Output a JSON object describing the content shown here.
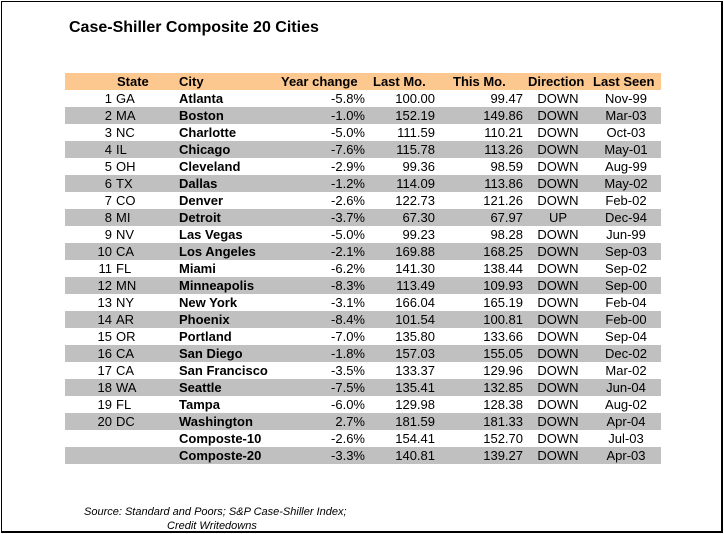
{
  "title": "Case-Shiller Composite 20 Cities",
  "columns": {
    "state": "State",
    "city": "City",
    "year_change": "Year change",
    "last_mo": "Last Mo.",
    "this_mo": "This Mo.",
    "direction": "Direction",
    "last_seen": "Last Seen"
  },
  "rows": [
    {
      "num": "1",
      "state": "GA",
      "city": "Atlanta",
      "year_change": "-5.8%",
      "last_mo": "100.00",
      "this_mo": "99.47",
      "direction": "DOWN",
      "last_seen": "Nov-99"
    },
    {
      "num": "2",
      "state": "MA",
      "city": "Boston",
      "year_change": "-1.0%",
      "last_mo": "152.19",
      "this_mo": "149.86",
      "direction": "DOWN",
      "last_seen": "Mar-03"
    },
    {
      "num": "3",
      "state": "NC",
      "city": "Charlotte",
      "year_change": "-5.0%",
      "last_mo": "111.59",
      "this_mo": "110.21",
      "direction": "DOWN",
      "last_seen": "Oct-03"
    },
    {
      "num": "4",
      "state": "IL",
      "city": "Chicago",
      "year_change": "-7.6%",
      "last_mo": "115.78",
      "this_mo": "113.26",
      "direction": "DOWN",
      "last_seen": "May-01"
    },
    {
      "num": "5",
      "state": "OH",
      "city": "Cleveland",
      "year_change": "-2.9%",
      "last_mo": "99.36",
      "this_mo": "98.59",
      "direction": "DOWN",
      "last_seen": "Aug-99"
    },
    {
      "num": "6",
      "state": "TX",
      "city": "Dallas",
      "year_change": "-1.2%",
      "last_mo": "114.09",
      "this_mo": "113.86",
      "direction": "DOWN",
      "last_seen": "May-02"
    },
    {
      "num": "7",
      "state": "CO",
      "city": "Denver",
      "year_change": "-2.6%",
      "last_mo": "122.73",
      "this_mo": "121.26",
      "direction": "DOWN",
      "last_seen": "Feb-02"
    },
    {
      "num": "8",
      "state": "MI",
      "city": "Detroit",
      "year_change": "-3.7%",
      "last_mo": "67.30",
      "this_mo": "67.97",
      "direction": "UP",
      "last_seen": "Dec-94"
    },
    {
      "num": "9",
      "state": "NV",
      "city": "Las Vegas",
      "year_change": "-5.0%",
      "last_mo": "99.23",
      "this_mo": "98.28",
      "direction": "DOWN",
      "last_seen": "Jun-99"
    },
    {
      "num": "10",
      "state": "CA",
      "city": "Los Angeles",
      "year_change": "-2.1%",
      "last_mo": "169.88",
      "this_mo": "168.25",
      "direction": "DOWN",
      "last_seen": "Sep-03"
    },
    {
      "num": "11",
      "state": "FL",
      "city": "Miami",
      "year_change": "-6.2%",
      "last_mo": "141.30",
      "this_mo": "138.44",
      "direction": "DOWN",
      "last_seen": "Sep-02"
    },
    {
      "num": "12",
      "state": "MN",
      "city": "Minneapolis",
      "year_change": "-8.3%",
      "last_mo": "113.49",
      "this_mo": "109.93",
      "direction": "DOWN",
      "last_seen": "Sep-00"
    },
    {
      "num": "13",
      "state": "NY",
      "city": "New York",
      "year_change": "-3.1%",
      "last_mo": "166.04",
      "this_mo": "165.19",
      "direction": "DOWN",
      "last_seen": "Feb-04"
    },
    {
      "num": "14",
      "state": "AR",
      "city": "Phoenix",
      "year_change": "-8.4%",
      "last_mo": "101.54",
      "this_mo": "100.81",
      "direction": "DOWN",
      "last_seen": "Feb-00"
    },
    {
      "num": "15",
      "state": "OR",
      "city": "Portland",
      "year_change": "-7.0%",
      "last_mo": "135.80",
      "this_mo": "133.66",
      "direction": "DOWN",
      "last_seen": "Sep-04"
    },
    {
      "num": "16",
      "state": "CA",
      "city": "San Diego",
      "year_change": "-1.8%",
      "last_mo": "157.03",
      "this_mo": "155.05",
      "direction": "DOWN",
      "last_seen": "Dec-02"
    },
    {
      "num": "17",
      "state": "CA",
      "city": "San Francisco",
      "year_change": "-3.5%",
      "last_mo": "133.37",
      "this_mo": "129.96",
      "direction": "DOWN",
      "last_seen": "Mar-02"
    },
    {
      "num": "18",
      "state": "WA",
      "city": "Seattle",
      "year_change": "-7.5%",
      "last_mo": "135.41",
      "this_mo": "132.85",
      "direction": "DOWN",
      "last_seen": "Jun-04"
    },
    {
      "num": "19",
      "state": "FL",
      "city": "Tampa",
      "year_change": "-6.0%",
      "last_mo": "129.98",
      "this_mo": "128.38",
      "direction": "DOWN",
      "last_seen": "Aug-02"
    },
    {
      "num": "20",
      "state": "DC",
      "city": "Washington",
      "year_change": "2.7%",
      "last_mo": "181.59",
      "this_mo": "181.33",
      "direction": "DOWN",
      "last_seen": "Apr-04"
    },
    {
      "num": "",
      "state": "",
      "city": "Composte-10",
      "year_change": "-2.6%",
      "last_mo": "154.41",
      "this_mo": "152.70",
      "direction": "DOWN",
      "last_seen": "Jul-03"
    },
    {
      "num": "",
      "state": "",
      "city": "Composte-20",
      "year_change": "-3.3%",
      "last_mo": "140.81",
      "this_mo": "139.27",
      "direction": "DOWN",
      "last_seen": "Apr-03"
    }
  ],
  "source_line1": "Source: Standard and Poors; S&P Case-Shiller Index;",
  "source_line2": "Credit Writedowns",
  "colors": {
    "header_bg": "#fcc890",
    "stripe_bg": "#c0c0c0"
  }
}
